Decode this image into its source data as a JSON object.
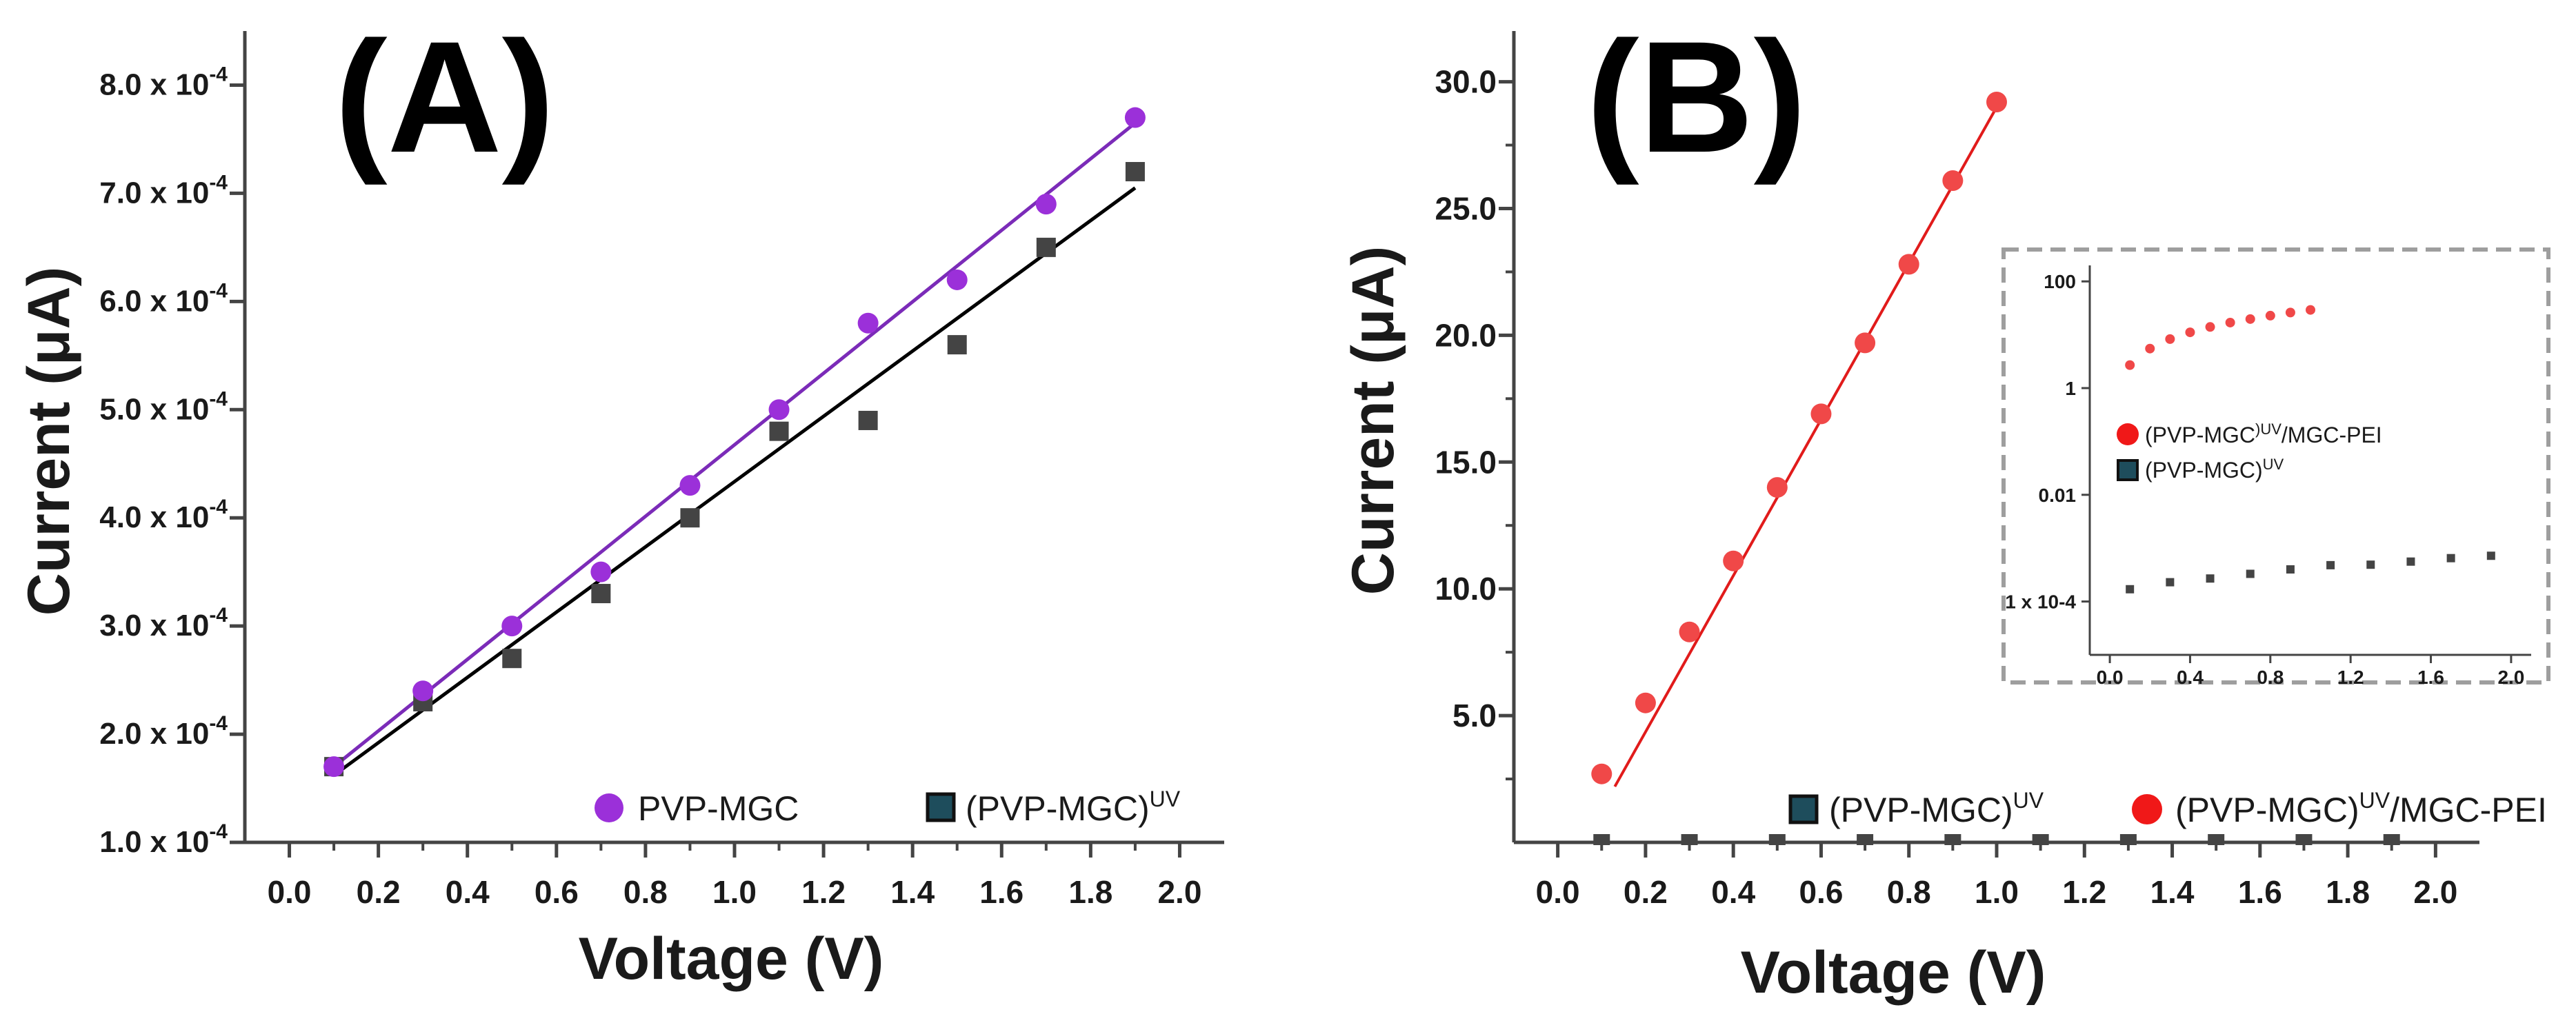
{
  "colors": {
    "purple": "#9B30D9",
    "purple_line": "#7B2BB8",
    "gray_marker": "#444444",
    "legend_teal": "#1E4D5C",
    "red_marker": "#F04848",
    "red_line": "#E11B1B",
    "axis": "#444444",
    "inset_border": "#9E9E9E"
  },
  "chart_data": [
    {
      "id": "A",
      "type": "scatter",
      "panel_label": "(A)",
      "xlabel": "Voltage (V)",
      "ylabel": "Current (μA)",
      "xlim": [
        -0.1,
        2.1
      ],
      "ylim": [
        1.0,
        8.5
      ],
      "y_scale_exponent": -4,
      "x_ticks": [
        "0.0",
        "0.2",
        "0.4",
        "0.6",
        "0.8",
        "1.0",
        "1.2",
        "1.4",
        "1.6",
        "1.8",
        "2.0"
      ],
      "y_ticks": [
        {
          "value": 1.0,
          "mantissa": "1.0 x 10",
          "exp": "-4"
        },
        {
          "value": 2.0,
          "mantissa": "2.0 x 10",
          "exp": "-4"
        },
        {
          "value": 3.0,
          "mantissa": "3.0 x 10",
          "exp": "-4"
        },
        {
          "value": 4.0,
          "mantissa": "4.0 x 10",
          "exp": "-4"
        },
        {
          "value": 5.0,
          "mantissa": "5.0 x 10",
          "exp": "-4"
        },
        {
          "value": 6.0,
          "mantissa": "6.0 x 10",
          "exp": "-4"
        },
        {
          "value": 7.0,
          "mantissa": "7.0 x 10",
          "exp": "-4"
        },
        {
          "value": 8.0,
          "mantissa": "8.0 x 10",
          "exp": "-4"
        }
      ],
      "series": [
        {
          "name": "PVP-MGC",
          "label_main": "PVP-MGC",
          "label_sup": "",
          "marker": "circle",
          "color": "#9B30D9",
          "x": [
            0.1,
            0.3,
            0.5,
            0.7,
            0.9,
            1.1,
            1.3,
            1.5,
            1.7,
            1.9
          ],
          "y": [
            1.7,
            2.4,
            3.0,
            3.5,
            4.3,
            5.0,
            5.8,
            6.2,
            6.9,
            7.7
          ],
          "fit": {
            "x": [
              0.1,
              1.9
            ],
            "y": [
              1.7,
              7.65
            ],
            "color": "#7B2BB8"
          }
        },
        {
          "name": "(PVP-MGC)UV",
          "label_main": "(PVP-MGC)",
          "label_sup": "UV",
          "marker": "square",
          "color": "#444444",
          "legend_color": "#1E4D5C",
          "x": [
            0.1,
            0.3,
            0.5,
            0.7,
            0.9,
            1.1,
            1.3,
            1.5,
            1.7,
            1.9
          ],
          "y": [
            1.7,
            2.3,
            2.7,
            3.3,
            4.0,
            4.8,
            4.9,
            5.6,
            6.5,
            7.2
          ],
          "fit": {
            "x": [
              0.1,
              1.9
            ],
            "y": [
              1.62,
              7.05
            ],
            "color": "#000000"
          }
        }
      ]
    },
    {
      "id": "B",
      "type": "scatter",
      "panel_label": "(B)",
      "xlabel": "Voltage (V)",
      "ylabel": "Current (μA)",
      "xlim": [
        -0.1,
        2.1
      ],
      "ylim": [
        0.0,
        32.0
      ],
      "x_ticks": [
        "0.0",
        "0.2",
        "0.4",
        "0.6",
        "0.8",
        "1.0",
        "1.2",
        "1.4",
        "1.6",
        "1.8",
        "2.0"
      ],
      "y_ticks": [
        "5.0",
        "10.0",
        "15.0",
        "20.0",
        "25.0",
        "30.0"
      ],
      "series": [
        {
          "name": "(PVP-MGC)UV",
          "label_main": "(PVP-MGC)",
          "label_sup": "UV",
          "label_tail": "",
          "marker": "square",
          "color": "#444444",
          "legend_color": "#1E4D5C",
          "x": [
            0.1,
            0.3,
            0.5,
            0.7,
            0.9,
            1.1,
            1.3,
            1.5,
            1.7,
            1.9
          ],
          "y": [
            0.0,
            0.0,
            0.0,
            0.0,
            0.0,
            0.0,
            0.0,
            0.0,
            0.0,
            0.0
          ]
        },
        {
          "name": "(PVP-MGC)UV/MGC-PEI",
          "label_main": "(PVP-MGC)",
          "label_sup": "UV",
          "label_tail": "/MGC-PEI",
          "marker": "circle",
          "color": "#F04848",
          "x": [
            0.1,
            0.2,
            0.3,
            0.4,
            0.5,
            0.6,
            0.7,
            0.8,
            0.9,
            1.0
          ],
          "y": [
            2.7,
            5.5,
            8.3,
            11.1,
            14.0,
            16.9,
            19.7,
            22.8,
            26.1,
            29.2
          ],
          "fit": {
            "x": [
              0.13,
              1.0
            ],
            "y": [
              2.2,
              29.0
            ],
            "color": "#E11B1B"
          }
        }
      ],
      "inset": {
        "yscale": "log",
        "xlim": [
          -0.1,
          2.1
        ],
        "ylim_log10": [
          -5.0,
          2.3
        ],
        "x_ticks": [
          "0.0",
          "0.4",
          "0.8",
          "1.2",
          "1.6",
          "2.0"
        ],
        "y_ticks": [
          {
            "value": 100,
            "label": "100"
          },
          {
            "value": 1,
            "label": "1"
          },
          {
            "value": 0.01,
            "label": "0.01"
          },
          {
            "value": 0.0001,
            "label": "1 x 10-4"
          }
        ],
        "legend": [
          {
            "label": "(PVP-MGC)UV/MGC-PEI",
            "main": "(PVP-MGC",
            "sup": ")UV",
            "tail": "/MGC-PEI",
            "marker": "circle",
            "color": "#F04848"
          },
          {
            "label": "(PVP-MGC)UV",
            "main": "(PVP-MGC)",
            "sup": "UV",
            "tail": "",
            "marker": "square",
            "color": "#1E4D5C"
          }
        ],
        "series": [
          {
            "name": "(PVP-MGC)UV/MGC-PEI",
            "color": "#F04848",
            "x": [
              0.1,
              0.2,
              0.3,
              0.4,
              0.5,
              0.6,
              0.7,
              0.8,
              0.9,
              1.0
            ],
            "y": [
              2.7,
              5.5,
              8.3,
              11.1,
              14.0,
              16.9,
              19.7,
              22.8,
              26.1,
              29.2
            ]
          },
          {
            "name": "(PVP-MGC)UV",
            "color": "#444444",
            "x": [
              0.1,
              0.3,
              0.5,
              0.7,
              0.9,
              1.1,
              1.3,
              1.5,
              1.7,
              1.9
            ],
            "y": [
              0.00017,
              0.00023,
              0.00027,
              0.00033,
              0.0004,
              0.00048,
              0.00049,
              0.00056,
              0.00065,
              0.00072
            ]
          }
        ]
      }
    }
  ]
}
